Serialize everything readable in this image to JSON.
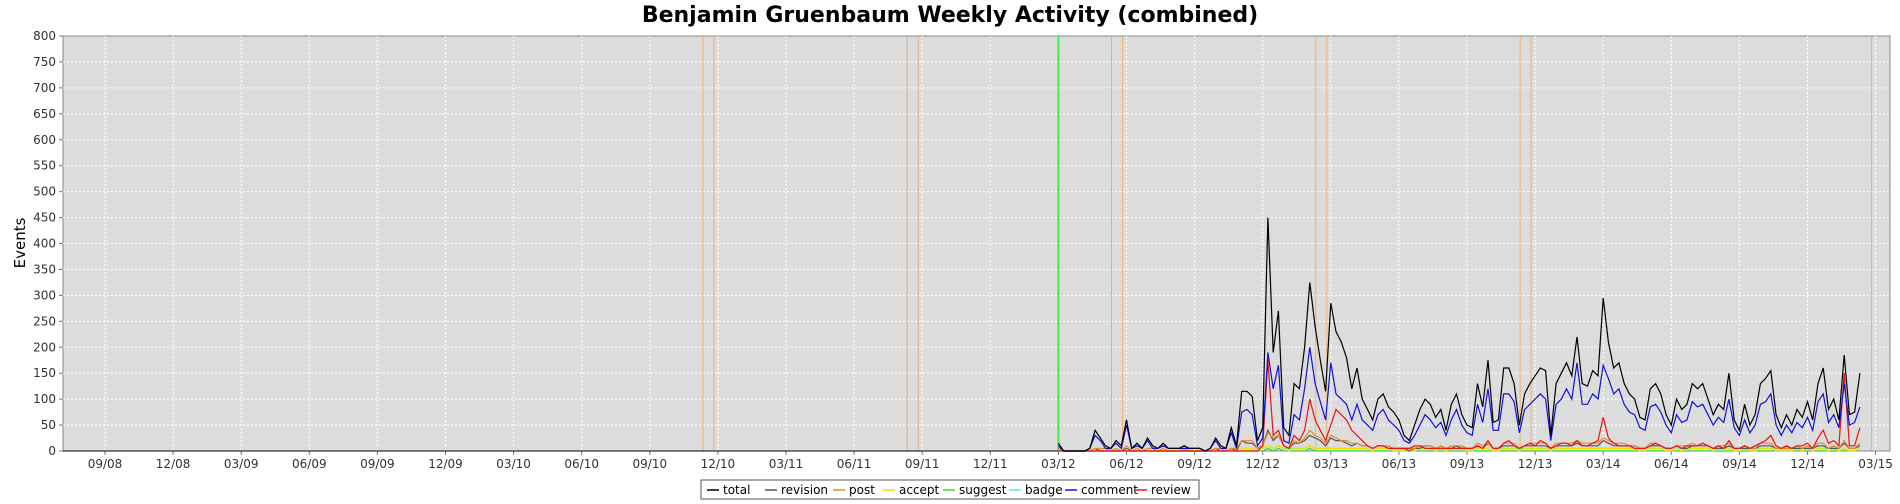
{
  "chart_data": {
    "type": "line",
    "title": "Benjamin Gruenbaum Weekly Activity (combined)",
    "xlabel": "",
    "ylabel": "Events",
    "ylim": [
      0,
      800
    ],
    "y_ticks": [
      0,
      50,
      100,
      150,
      200,
      250,
      300,
      350,
      400,
      450,
      500,
      550,
      600,
      650,
      700,
      750,
      800
    ],
    "x_ticks": [
      "09/08",
      "12/08",
      "03/09",
      "06/09",
      "09/09",
      "12/09",
      "03/10",
      "06/10",
      "09/10",
      "12/10",
      "03/11",
      "06/11",
      "09/11",
      "12/11",
      "03/12",
      "06/12",
      "09/12",
      "12/12",
      "03/13",
      "06/13",
      "09/13",
      "12/13",
      "03/14",
      "06/14",
      "09/14",
      "12/14",
      "03/15"
    ],
    "x_range": [
      "2008-07",
      "2015-03"
    ],
    "grid": true,
    "legend_position": "bottom-center",
    "colors": {
      "total": "#000000",
      "revision": "#555555",
      "post": "#e58a2e",
      "accept": "#e6e600",
      "suggest": "#33dd33",
      "badge": "#66e6e6",
      "comment": "#1111dd",
      "review": "#ee1111",
      "event_marker_orange": "#f0b070",
      "event_marker_green": "#44ee44",
      "plot_background": "#dcdcdc"
    },
    "legend": [
      "total",
      "revision",
      "post",
      "accept",
      "suggest",
      "badge",
      "comment",
      "review"
    ],
    "vertical_markers": [
      {
        "x": "12/10",
        "color": "orange"
      },
      {
        "x": "12/10",
        "color": "orange"
      },
      {
        "x": "09/11",
        "color": "orange"
      },
      {
        "x": "09/11",
        "color": "orange"
      },
      {
        "x": "03/12",
        "color": "green"
      },
      {
        "x": "06/12",
        "color": "orange"
      },
      {
        "x": "06/12",
        "color": "orange"
      },
      {
        "x": "03/13",
        "color": "orange"
      },
      {
        "x": "03/13",
        "color": "orange"
      },
      {
        "x": "12/13",
        "color": "orange"
      },
      {
        "x": "12/13",
        "color": "orange"
      },
      {
        "x": "03/15",
        "color": "orange"
      }
    ],
    "series_points_per_tick": 13,
    "series": [
      {
        "name": "total",
        "start_tick": "03/12",
        "values": [
          15,
          0,
          0,
          0,
          0,
          0,
          5,
          40,
          25,
          10,
          5,
          20,
          10,
          60,
          5,
          15,
          5,
          25,
          10,
          5,
          15,
          5,
          5,
          5,
          10,
          5,
          5,
          5,
          0,
          5,
          25,
          10,
          5,
          45,
          10,
          115,
          115,
          105,
          20,
          45,
          450,
          190,
          270,
          45,
          30,
          130,
          120,
          200,
          325,
          240,
          175,
          115,
          285,
          230,
          210,
          180,
          120,
          160,
          100,
          80,
          60,
          100,
          110,
          85,
          75,
          60,
          30,
          20,
          50,
          80,
          100,
          90,
          65,
          80,
          40,
          90,
          110,
          70,
          50,
          45,
          130,
          85,
          175,
          55,
          60,
          160,
          160,
          130,
          50,
          110,
          130,
          145,
          160,
          155,
          30,
          130,
          150,
          170,
          145,
          220,
          130,
          125,
          155,
          145,
          295,
          210,
          160,
          170,
          130,
          110,
          100,
          65,
          60,
          120,
          130,
          110,
          70,
          50,
          100,
          80,
          90,
          130,
          120,
          130,
          100,
          70,
          90,
          80,
          150,
          60,
          40,
          90,
          50,
          70,
          130,
          140,
          155,
          70,
          45,
          70,
          50,
          80,
          65,
          95,
          60,
          130,
          160,
          80,
          100,
          60,
          185,
          70,
          75,
          150
        ]
      },
      {
        "name": "comment",
        "start_tick": "03/12",
        "values": [
          10,
          0,
          0,
          0,
          0,
          0,
          5,
          30,
          20,
          5,
          5,
          15,
          5,
          50,
          5,
          10,
          5,
          20,
          5,
          5,
          10,
          5,
          5,
          5,
          5,
          5,
          5,
          5,
          0,
          5,
          20,
          5,
          5,
          35,
          5,
          75,
          80,
          70,
          10,
          25,
          190,
          120,
          165,
          20,
          15,
          70,
          60,
          120,
          200,
          130,
          95,
          60,
          170,
          110,
          100,
          90,
          60,
          90,
          60,
          50,
          40,
          70,
          80,
          60,
          50,
          40,
          20,
          15,
          30,
          50,
          70,
          60,
          45,
          55,
          30,
          60,
          80,
          50,
          35,
          30,
          90,
          55,
          120,
          40,
          40,
          110,
          110,
          95,
          35,
          80,
          90,
          100,
          110,
          100,
          20,
          90,
          100,
          120,
          100,
          170,
          90,
          90,
          110,
          100,
          165,
          140,
          110,
          120,
          90,
          75,
          70,
          45,
          40,
          85,
          90,
          75,
          50,
          35,
          70,
          55,
          60,
          95,
          85,
          90,
          70,
          50,
          65,
          55,
          100,
          45,
          30,
          60,
          35,
          50,
          90,
          95,
          110,
          50,
          30,
          50,
          35,
          55,
          45,
          65,
          40,
          95,
          110,
          55,
          70,
          45,
          130,
          50,
          55,
          85
        ]
      },
      {
        "name": "review",
        "start_tick": "03/12",
        "values": [
          0,
          0,
          0,
          0,
          0,
          0,
          0,
          0,
          0,
          0,
          0,
          0,
          0,
          0,
          0,
          0,
          0,
          0,
          0,
          0,
          0,
          0,
          0,
          0,
          0,
          0,
          0,
          0,
          0,
          0,
          0,
          0,
          0,
          0,
          0,
          0,
          0,
          0,
          0,
          10,
          175,
          30,
          40,
          10,
          5,
          30,
          20,
          40,
          100,
          60,
          40,
          20,
          50,
          80,
          70,
          60,
          40,
          30,
          20,
          10,
          5,
          10,
          10,
          5,
          5,
          5,
          5,
          5,
          10,
          10,
          5,
          5,
          5,
          5,
          5,
          5,
          5,
          5,
          5,
          5,
          10,
          5,
          20,
          5,
          5,
          15,
          20,
          10,
          5,
          10,
          15,
          10,
          20,
          15,
          5,
          10,
          15,
          15,
          10,
          20,
          10,
          10,
          15,
          20,
          65,
          25,
          15,
          10,
          10,
          10,
          5,
          5,
          5,
          10,
          15,
          10,
          5,
          5,
          10,
          5,
          10,
          10,
          10,
          15,
          10,
          5,
          10,
          5,
          20,
          5,
          5,
          10,
          5,
          10,
          15,
          20,
          30,
          10,
          5,
          10,
          5,
          10,
          10,
          15,
          5,
          25,
          40,
          15,
          20,
          10,
          150,
          10,
          10,
          45
        ]
      },
      {
        "name": "post",
        "start_tick": "03/12",
        "values": [
          5,
          0,
          0,
          0,
          0,
          0,
          0,
          5,
          5,
          5,
          0,
          5,
          0,
          10,
          0,
          5,
          0,
          5,
          5,
          0,
          5,
          0,
          0,
          0,
          5,
          0,
          0,
          0,
          0,
          0,
          5,
          5,
          0,
          5,
          5,
          20,
          20,
          20,
          5,
          10,
          35,
          25,
          30,
          10,
          5,
          20,
          15,
          25,
          40,
          30,
          25,
          15,
          30,
          25,
          20,
          20,
          15,
          15,
          10,
          10,
          5,
          10,
          10,
          10,
          5,
          5,
          5,
          5,
          5,
          10,
          10,
          10,
          5,
          10,
          5,
          10,
          10,
          10,
          5,
          5,
          15,
          10,
          15,
          5,
          5,
          15,
          15,
          15,
          5,
          10,
          15,
          15,
          15,
          15,
          5,
          15,
          15,
          15,
          15,
          20,
          15,
          15,
          15,
          15,
          25,
          20,
          15,
          15,
          15,
          10,
          10,
          5,
          5,
          15,
          15,
          10,
          5,
          5,
          10,
          10,
          10,
          15,
          10,
          15,
          10,
          5,
          10,
          10,
          15,
          5,
          5,
          10,
          5,
          5,
          15,
          15,
          15,
          5,
          5,
          5,
          5,
          10,
          5,
          10,
          5,
          15,
          15,
          5,
          10,
          5,
          20,
          5,
          5,
          15
        ]
      },
      {
        "name": "revision",
        "start_tick": "03/12",
        "values": [
          5,
          0,
          0,
          0,
          0,
          0,
          0,
          5,
          0,
          0,
          0,
          0,
          0,
          5,
          0,
          0,
          0,
          0,
          0,
          0,
          0,
          0,
          0,
          0,
          0,
          0,
          0,
          0,
          0,
          0,
          5,
          0,
          0,
          5,
          0,
          20,
          15,
          15,
          5,
          10,
          40,
          20,
          30,
          10,
          5,
          15,
          15,
          20,
          30,
          25,
          20,
          10,
          25,
          20,
          20,
          15,
          10,
          15,
          10,
          10,
          5,
          10,
          10,
          5,
          5,
          5,
          5,
          0,
          5,
          5,
          10,
          10,
          5,
          5,
          5,
          5,
          10,
          5,
          5,
          5,
          10,
          5,
          15,
          5,
          5,
          10,
          10,
          10,
          5,
          10,
          10,
          10,
          10,
          10,
          5,
          10,
          10,
          10,
          10,
          15,
          10,
          10,
          10,
          10,
          20,
          15,
          10,
          10,
          10,
          10,
          10,
          5,
          5,
          10,
          10,
          10,
          5,
          5,
          10,
          5,
          5,
          10,
          10,
          10,
          10,
          5,
          5,
          5,
          10,
          5,
          5,
          5,
          5,
          5,
          10,
          10,
          10,
          5,
          5,
          5,
          5,
          5,
          5,
          5,
          5,
          10,
          10,
          5,
          5,
          5,
          15,
          5,
          5,
          10
        ]
      },
      {
        "name": "accept",
        "start_tick": "03/12",
        "values": [
          0,
          0,
          0,
          0,
          0,
          0,
          0,
          0,
          0,
          0,
          0,
          0,
          0,
          0,
          0,
          0,
          0,
          0,
          0,
          0,
          0,
          0,
          0,
          0,
          0,
          0,
          0,
          0,
          0,
          0,
          0,
          0,
          0,
          0,
          0,
          5,
          5,
          5,
          0,
          5,
          10,
          5,
          10,
          5,
          0,
          5,
          5,
          5,
          10,
          5,
          5,
          5,
          5,
          5,
          5,
          5,
          5,
          5,
          5,
          5,
          0,
          5,
          5,
          5,
          0,
          0,
          0,
          0,
          0,
          5,
          5,
          5,
          0,
          5,
          0,
          5,
          5,
          5,
          0,
          0,
          5,
          5,
          5,
          0,
          0,
          5,
          5,
          5,
          0,
          5,
          5,
          5,
          5,
          5,
          0,
          5,
          5,
          5,
          5,
          5,
          5,
          5,
          5,
          5,
          5,
          5,
          5,
          5,
          5,
          5,
          5,
          0,
          0,
          5,
          5,
          5,
          0,
          0,
          5,
          0,
          5,
          5,
          5,
          5,
          5,
          0,
          5,
          5,
          5,
          0,
          0,
          5,
          0,
          0,
          5,
          5,
          5,
          0,
          0,
          0,
          0,
          5,
          0,
          5,
          0,
          5,
          5,
          0,
          5,
          0,
          5,
          0,
          0,
          5
        ]
      },
      {
        "name": "suggest",
        "start_tick": "03/12",
        "values": [
          0,
          0,
          0,
          0,
          0,
          0,
          0,
          0,
          0,
          0,
          0,
          0,
          0,
          0,
          0,
          0,
          0,
          0,
          0,
          0,
          0,
          0,
          0,
          0,
          0,
          0,
          0,
          0,
          0,
          0,
          0,
          0,
          0,
          0,
          0,
          0,
          0,
          0,
          0,
          0,
          5,
          0,
          5,
          0,
          0,
          0,
          0,
          0,
          5,
          0,
          0,
          0,
          0,
          0,
          0,
          0,
          0,
          0,
          0,
          0,
          0,
          0,
          0,
          0,
          0,
          0,
          0,
          0,
          0,
          0,
          0,
          0,
          0,
          0,
          0,
          0,
          0,
          0,
          0,
          0,
          0,
          0,
          0,
          0,
          0,
          0,
          0,
          0,
          0,
          0,
          0,
          0,
          0,
          0,
          0,
          0,
          0,
          0,
          0,
          0,
          0,
          0,
          0,
          0,
          0,
          0,
          0,
          0,
          0,
          0,
          0,
          0,
          0,
          0,
          0,
          0,
          0,
          0,
          0,
          0,
          0,
          0,
          0,
          0,
          0,
          0,
          0,
          0,
          0,
          0,
          0,
          0,
          0,
          0,
          0,
          0,
          0,
          0,
          0,
          0,
          0,
          0,
          0,
          0,
          0,
          0,
          0,
          0,
          0,
          0,
          0,
          0,
          0,
          0
        ]
      },
      {
        "name": "badge",
        "start_tick": "03/12",
        "values": [
          0,
          0,
          0,
          0,
          0,
          0,
          0,
          0,
          0,
          0,
          0,
          0,
          0,
          0,
          0,
          0,
          0,
          0,
          0,
          0,
          0,
          0,
          0,
          0,
          0,
          0,
          0,
          0,
          0,
          0,
          0,
          0,
          0,
          0,
          0,
          5,
          5,
          5,
          0,
          5,
          10,
          5,
          10,
          5,
          5,
          5,
          5,
          5,
          10,
          5,
          5,
          5,
          5,
          5,
          5,
          5,
          5,
          5,
          5,
          5,
          0,
          5,
          5,
          5,
          5,
          5,
          0,
          0,
          5,
          5,
          5,
          5,
          5,
          5,
          0,
          5,
          5,
          5,
          5,
          0,
          5,
          5,
          5,
          0,
          5,
          5,
          5,
          5,
          5,
          5,
          5,
          5,
          5,
          5,
          0,
          5,
          5,
          5,
          5,
          5,
          5,
          5,
          5,
          5,
          5,
          5,
          5,
          5,
          5,
          5,
          5,
          0,
          0,
          5,
          5,
          5,
          5,
          0,
          5,
          5,
          5,
          5,
          5,
          5,
          5,
          0,
          5,
          5,
          5,
          0,
          0,
          5,
          0,
          5,
          5,
          5,
          5,
          0,
          0,
          5,
          0,
          5,
          5,
          5,
          0,
          5,
          5,
          5,
          5,
          0,
          5,
          0,
          0,
          5
        ]
      }
    ]
  }
}
